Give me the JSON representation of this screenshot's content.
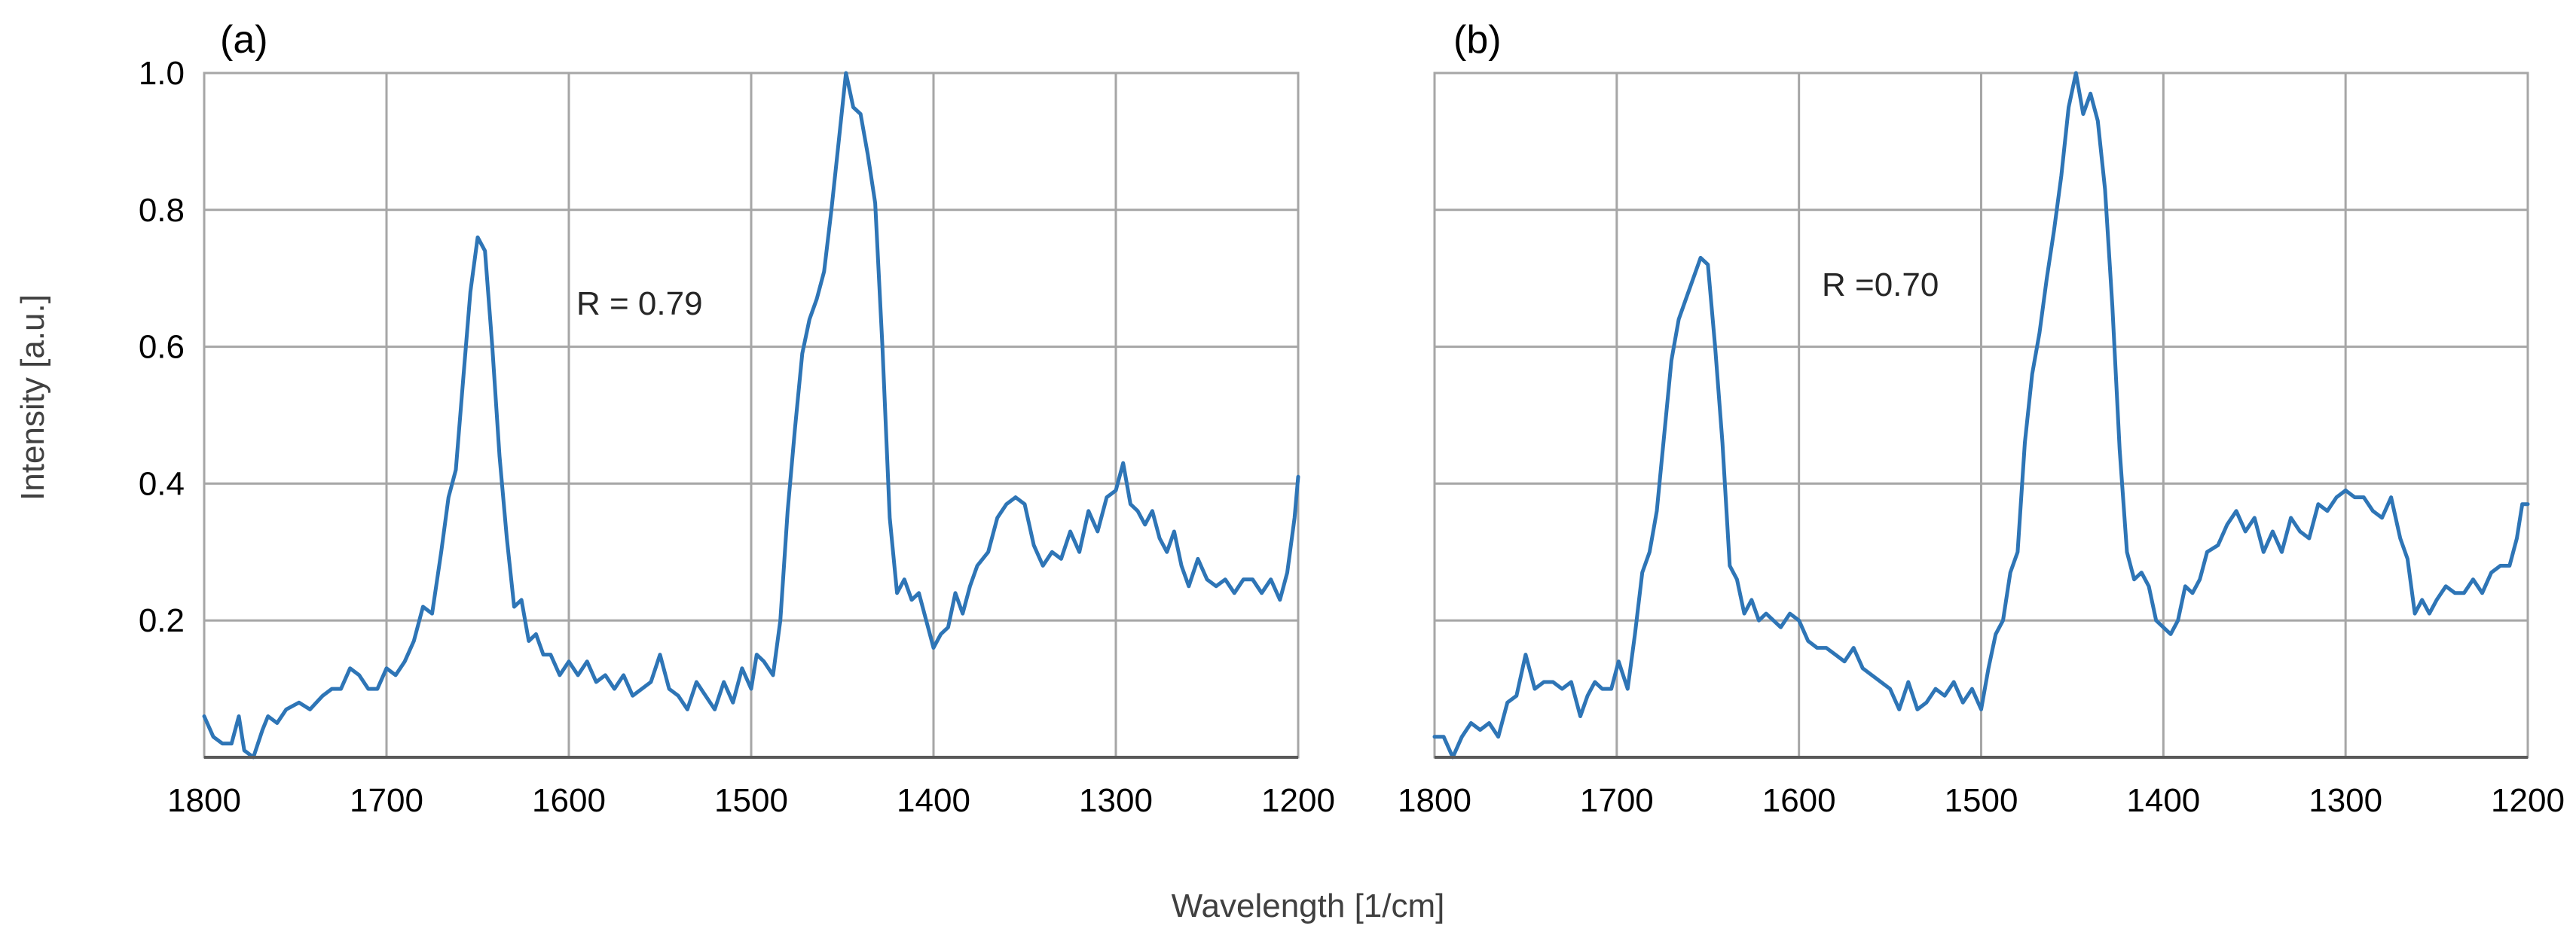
{
  "figure": {
    "shared_xlabel": "Wavelength [1/cm]",
    "shared_ylabel": "Intensity [a.u.]"
  },
  "chart_data": [
    {
      "type": "line",
      "panel_label": "(a)",
      "annotation": "R = 0.79",
      "xlabel": "",
      "ylabel": "",
      "xlim": [
        1800,
        1200
      ],
      "ylim": [
        0,
        1.0
      ],
      "x_ticks": [
        1800,
        1700,
        1600,
        1500,
        1400,
        1300,
        1200
      ],
      "y_ticks": [
        0.2,
        0.4,
        0.6,
        0.8,
        1.0
      ],
      "x_tick_labels": [
        "1800",
        "1700",
        "1600",
        "1500",
        "1400",
        "1300",
        "1200"
      ],
      "y_tick_labels": [
        "0.2",
        "0.4",
        "0.6",
        "0.8",
        "1.0"
      ],
      "grid": true,
      "series": [
        {
          "color": "#2e75b6",
          "points": [
            [
              1800,
              0.06
            ],
            [
              1795,
              0.03
            ],
            [
              1790,
              0.02
            ],
            [
              1785,
              0.02
            ],
            [
              1781,
              0.06
            ],
            [
              1778,
              0.01
            ],
            [
              1773,
              0.0
            ],
            [
              1768,
              0.04
            ],
            [
              1765,
              0.06
            ],
            [
              1760,
              0.05
            ],
            [
              1755,
              0.07
            ],
            [
              1748,
              0.08
            ],
            [
              1742,
              0.07
            ],
            [
              1735,
              0.09
            ],
            [
              1730,
              0.1
            ],
            [
              1725,
              0.1
            ],
            [
              1720,
              0.13
            ],
            [
              1715,
              0.12
            ],
            [
              1710,
              0.1
            ],
            [
              1705,
              0.1
            ],
            [
              1700,
              0.13
            ],
            [
              1695,
              0.12
            ],
            [
              1690,
              0.14
            ],
            [
              1685,
              0.17
            ],
            [
              1680,
              0.22
            ],
            [
              1675,
              0.21
            ],
            [
              1670,
              0.3
            ],
            [
              1666,
              0.38
            ],
            [
              1662,
              0.42
            ],
            [
              1658,
              0.55
            ],
            [
              1654,
              0.68
            ],
            [
              1650,
              0.76
            ],
            [
              1646,
              0.74
            ],
            [
              1642,
              0.6
            ],
            [
              1638,
              0.44
            ],
            [
              1634,
              0.32
            ],
            [
              1630,
              0.22
            ],
            [
              1626,
              0.23
            ],
            [
              1622,
              0.17
            ],
            [
              1618,
              0.18
            ],
            [
              1614,
              0.15
            ],
            [
              1610,
              0.15
            ],
            [
              1605,
              0.12
            ],
            [
              1600,
              0.14
            ],
            [
              1595,
              0.12
            ],
            [
              1590,
              0.14
            ],
            [
              1585,
              0.11
            ],
            [
              1580,
              0.12
            ],
            [
              1575,
              0.1
            ],
            [
              1570,
              0.12
            ],
            [
              1565,
              0.09
            ],
            [
              1560,
              0.1
            ],
            [
              1555,
              0.11
            ],
            [
              1550,
              0.15
            ],
            [
              1545,
              0.1
            ],
            [
              1540,
              0.09
            ],
            [
              1535,
              0.07
            ],
            [
              1530,
              0.11
            ],
            [
              1525,
              0.09
            ],
            [
              1520,
              0.07
            ],
            [
              1515,
              0.11
            ],
            [
              1510,
              0.08
            ],
            [
              1505,
              0.13
            ],
            [
              1500,
              0.1
            ],
            [
              1497,
              0.15
            ],
            [
              1493,
              0.14
            ],
            [
              1488,
              0.12
            ],
            [
              1484,
              0.2
            ],
            [
              1480,
              0.36
            ],
            [
              1476,
              0.48
            ],
            [
              1472,
              0.59
            ],
            [
              1468,
              0.64
            ],
            [
              1464,
              0.67
            ],
            [
              1460,
              0.71
            ],
            [
              1456,
              0.8
            ],
            [
              1452,
              0.9
            ],
            [
              1448,
              1.0
            ],
            [
              1444,
              0.95
            ],
            [
              1440,
              0.94
            ],
            [
              1436,
              0.88
            ],
            [
              1432,
              0.81
            ],
            [
              1428,
              0.6
            ],
            [
              1424,
              0.35
            ],
            [
              1420,
              0.24
            ],
            [
              1416,
              0.26
            ],
            [
              1412,
              0.23
            ],
            [
              1408,
              0.24
            ],
            [
              1404,
              0.2
            ],
            [
              1400,
              0.16
            ],
            [
              1396,
              0.18
            ],
            [
              1392,
              0.19
            ],
            [
              1388,
              0.24
            ],
            [
              1384,
              0.21
            ],
            [
              1380,
              0.25
            ],
            [
              1376,
              0.28
            ],
            [
              1370,
              0.3
            ],
            [
              1365,
              0.35
            ],
            [
              1360,
              0.37
            ],
            [
              1355,
              0.38
            ],
            [
              1350,
              0.37
            ],
            [
              1345,
              0.31
            ],
            [
              1340,
              0.28
            ],
            [
              1335,
              0.3
            ],
            [
              1330,
              0.29
            ],
            [
              1325,
              0.33
            ],
            [
              1320,
              0.3
            ],
            [
              1315,
              0.36
            ],
            [
              1310,
              0.33
            ],
            [
              1305,
              0.38
            ],
            [
              1300,
              0.39
            ],
            [
              1296,
              0.43
            ],
            [
              1292,
              0.37
            ],
            [
              1288,
              0.36
            ],
            [
              1284,
              0.34
            ],
            [
              1280,
              0.36
            ],
            [
              1276,
              0.32
            ],
            [
              1272,
              0.3
            ],
            [
              1268,
              0.33
            ],
            [
              1264,
              0.28
            ],
            [
              1260,
              0.25
            ],
            [
              1255,
              0.29
            ],
            [
              1250,
              0.26
            ],
            [
              1245,
              0.25
            ],
            [
              1240,
              0.26
            ],
            [
              1235,
              0.24
            ],
            [
              1230,
              0.26
            ],
            [
              1225,
              0.26
            ],
            [
              1220,
              0.24
            ],
            [
              1215,
              0.26
            ],
            [
              1210,
              0.23
            ],
            [
              1206,
              0.27
            ],
            [
              1202,
              0.35
            ],
            [
              1200,
              0.41
            ]
          ]
        }
      ]
    },
    {
      "type": "line",
      "panel_label": "(b)",
      "annotation": "R =0.70",
      "xlabel": "",
      "ylabel": "",
      "xlim": [
        1800,
        1200
      ],
      "ylim": [
        0,
        1.0
      ],
      "x_ticks": [
        1800,
        1700,
        1600,
        1500,
        1400,
        1300,
        1200
      ],
      "y_ticks": [
        0.2,
        0.4,
        0.6,
        0.8,
        1.0
      ],
      "x_tick_labels": [
        "1800",
        "1700",
        "1600",
        "1500",
        "1400",
        "1300",
        "1200"
      ],
      "y_tick_labels": [
        "",
        "",
        "",
        "",
        ""
      ],
      "grid": true,
      "series": [
        {
          "color": "#2e75b6",
          "points": [
            [
              1800,
              0.03
            ],
            [
              1795,
              0.03
            ],
            [
              1790,
              0.0
            ],
            [
              1785,
              0.03
            ],
            [
              1780,
              0.05
            ],
            [
              1775,
              0.04
            ],
            [
              1770,
              0.05
            ],
            [
              1765,
              0.03
            ],
            [
              1760,
              0.08
            ],
            [
              1755,
              0.09
            ],
            [
              1750,
              0.15
            ],
            [
              1745,
              0.1
            ],
            [
              1740,
              0.11
            ],
            [
              1735,
              0.11
            ],
            [
              1730,
              0.1
            ],
            [
              1725,
              0.11
            ],
            [
              1720,
              0.06
            ],
            [
              1716,
              0.09
            ],
            [
              1712,
              0.11
            ],
            [
              1708,
              0.1
            ],
            [
              1703,
              0.1
            ],
            [
              1699,
              0.14
            ],
            [
              1694,
              0.1
            ],
            [
              1690,
              0.18
            ],
            [
              1686,
              0.27
            ],
            [
              1682,
              0.3
            ],
            [
              1678,
              0.36
            ],
            [
              1674,
              0.47
            ],
            [
              1670,
              0.58
            ],
            [
              1666,
              0.64
            ],
            [
              1662,
              0.67
            ],
            [
              1658,
              0.7
            ],
            [
              1654,
              0.73
            ],
            [
              1650,
              0.72
            ],
            [
              1646,
              0.6
            ],
            [
              1642,
              0.46
            ],
            [
              1638,
              0.28
            ],
            [
              1634,
              0.26
            ],
            [
              1630,
              0.21
            ],
            [
              1626,
              0.23
            ],
            [
              1622,
              0.2
            ],
            [
              1618,
              0.21
            ],
            [
              1614,
              0.2
            ],
            [
              1610,
              0.19
            ],
            [
              1605,
              0.21
            ],
            [
              1600,
              0.2
            ],
            [
              1595,
              0.17
            ],
            [
              1590,
              0.16
            ],
            [
              1585,
              0.16
            ],
            [
              1580,
              0.15
            ],
            [
              1575,
              0.14
            ],
            [
              1570,
              0.16
            ],
            [
              1565,
              0.13
            ],
            [
              1560,
              0.12
            ],
            [
              1555,
              0.11
            ],
            [
              1550,
              0.1
            ],
            [
              1545,
              0.07
            ],
            [
              1540,
              0.11
            ],
            [
              1535,
              0.07
            ],
            [
              1530,
              0.08
            ],
            [
              1525,
              0.1
            ],
            [
              1520,
              0.09
            ],
            [
              1515,
              0.11
            ],
            [
              1510,
              0.08
            ],
            [
              1505,
              0.1
            ],
            [
              1500,
              0.07
            ],
            [
              1496,
              0.13
            ],
            [
              1492,
              0.18
            ],
            [
              1488,
              0.2
            ],
            [
              1484,
              0.27
            ],
            [
              1480,
              0.3
            ],
            [
              1476,
              0.46
            ],
            [
              1472,
              0.56
            ],
            [
              1468,
              0.62
            ],
            [
              1464,
              0.7
            ],
            [
              1460,
              0.77
            ],
            [
              1456,
              0.85
            ],
            [
              1452,
              0.95
            ],
            [
              1448,
              1.0
            ],
            [
              1444,
              0.94
            ],
            [
              1440,
              0.97
            ],
            [
              1436,
              0.93
            ],
            [
              1432,
              0.83
            ],
            [
              1428,
              0.66
            ],
            [
              1424,
              0.45
            ],
            [
              1420,
              0.3
            ],
            [
              1416,
              0.26
            ],
            [
              1412,
              0.27
            ],
            [
              1408,
              0.25
            ],
            [
              1404,
              0.2
            ],
            [
              1400,
              0.19
            ],
            [
              1396,
              0.18
            ],
            [
              1392,
              0.2
            ],
            [
              1388,
              0.25
            ],
            [
              1384,
              0.24
            ],
            [
              1380,
              0.26
            ],
            [
              1376,
              0.3
            ],
            [
              1370,
              0.31
            ],
            [
              1365,
              0.34
            ],
            [
              1360,
              0.36
            ],
            [
              1355,
              0.33
            ],
            [
              1350,
              0.35
            ],
            [
              1345,
              0.3
            ],
            [
              1340,
              0.33
            ],
            [
              1335,
              0.3
            ],
            [
              1330,
              0.35
            ],
            [
              1325,
              0.33
            ],
            [
              1320,
              0.32
            ],
            [
              1315,
              0.37
            ],
            [
              1310,
              0.36
            ],
            [
              1305,
              0.38
            ],
            [
              1300,
              0.39
            ],
            [
              1295,
              0.38
            ],
            [
              1290,
              0.38
            ],
            [
              1285,
              0.36
            ],
            [
              1280,
              0.35
            ],
            [
              1275,
              0.38
            ],
            [
              1270,
              0.32
            ],
            [
              1266,
              0.29
            ],
            [
              1262,
              0.21
            ],
            [
              1258,
              0.23
            ],
            [
              1254,
              0.21
            ],
            [
              1250,
              0.23
            ],
            [
              1245,
              0.25
            ],
            [
              1240,
              0.24
            ],
            [
              1235,
              0.24
            ],
            [
              1230,
              0.26
            ],
            [
              1225,
              0.24
            ],
            [
              1220,
              0.27
            ],
            [
              1215,
              0.28
            ],
            [
              1210,
              0.28
            ],
            [
              1206,
              0.32
            ],
            [
              1203,
              0.37
            ],
            [
              1200,
              0.37
            ]
          ]
        }
      ]
    }
  ]
}
